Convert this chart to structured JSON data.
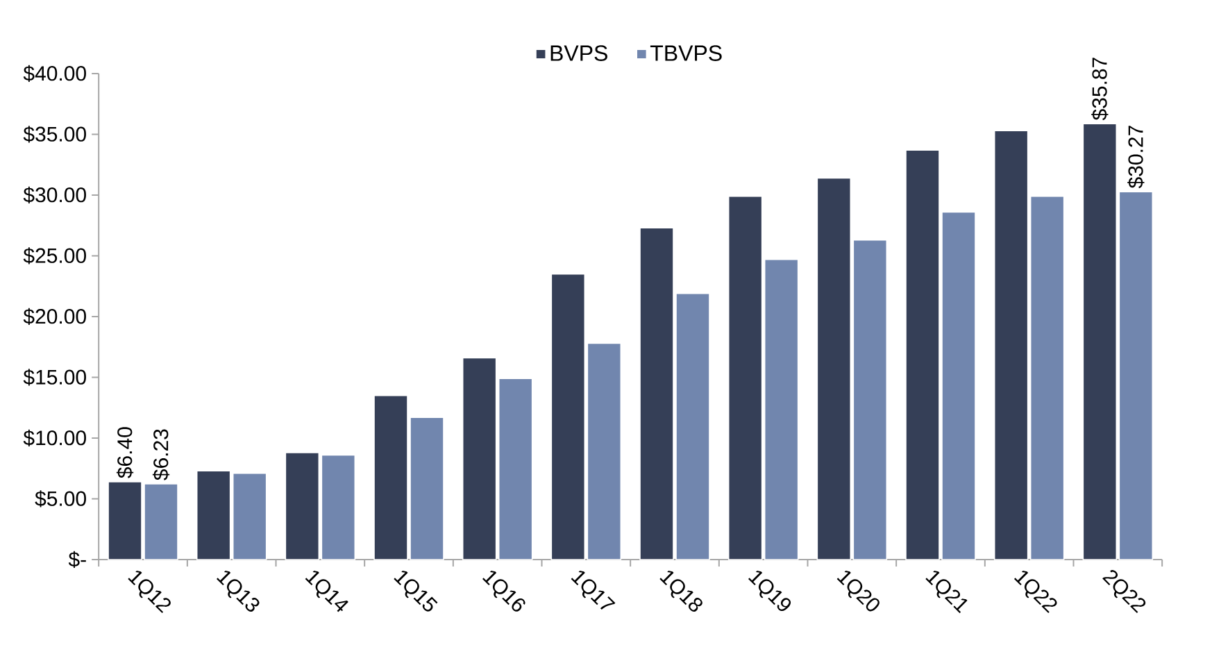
{
  "chart_data": {
    "type": "bar",
    "categories": [
      "1Q12",
      "1Q13",
      "1Q14",
      "1Q15",
      "1Q16",
      "1Q17",
      "1Q18",
      "1Q19",
      "1Q20",
      "1Q21",
      "1Q22",
      "2Q22"
    ],
    "series": [
      {
        "name": "BVPS",
        "color": "#353f57",
        "values": [
          6.4,
          7.3,
          8.8,
          13.5,
          16.6,
          23.5,
          27.3,
          29.9,
          31.4,
          33.7,
          35.3,
          35.87
        ],
        "value_labels": [
          "$6.40",
          null,
          null,
          null,
          null,
          null,
          null,
          null,
          null,
          null,
          null,
          "$35.87"
        ]
      },
      {
        "name": "TBVPS",
        "color": "#7186ae",
        "values": [
          6.23,
          7.1,
          8.6,
          11.7,
          14.9,
          17.8,
          21.9,
          24.7,
          26.3,
          28.6,
          29.9,
          30.27
        ],
        "value_labels": [
          "$6.23",
          null,
          null,
          null,
          null,
          null,
          null,
          null,
          null,
          null,
          null,
          "$30.27"
        ]
      }
    ],
    "ylim": [
      0,
      40
    ],
    "yticks": [
      {
        "value": 0,
        "label": "$-"
      },
      {
        "value": 5,
        "label": "$5.00"
      },
      {
        "value": 10,
        "label": "$10.00"
      },
      {
        "value": 15,
        "label": "$15.00"
      },
      {
        "value": 20,
        "label": "$20.00"
      },
      {
        "value": 25,
        "label": "$25.00"
      },
      {
        "value": 30,
        "label": "$30.00"
      },
      {
        "value": 35,
        "label": "$35.00"
      },
      {
        "value": 40,
        "label": "$40.00"
      }
    ],
    "grid": false,
    "legend": "top"
  }
}
